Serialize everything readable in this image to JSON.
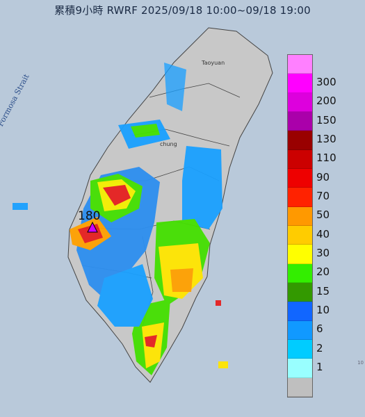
{
  "title": "累積9小時 RWRF 2025/09/18 10:00~09/18 19:00",
  "strait_label": "Formosa Strait",
  "place_labels": {
    "taoyuan": "Taoyuan",
    "taichung": "chung"
  },
  "max_value": "180",
  "max_marker": "purple triangle",
  "corner_label": "10",
  "legend": {
    "colors": [
      "#ff80ff",
      "#ff00ff",
      "#dd00dd",
      "#aa00aa",
      "#990000",
      "#cc0000",
      "#ee0000",
      "#ff2200",
      "#ff9900",
      "#ffcc00",
      "#ffff00",
      "#33ee00",
      "#339900",
      "#1166ff",
      "#1199ff",
      "#00ccff",
      "#99ffff",
      "#bfbfbf"
    ],
    "labels": [
      "300",
      "200",
      "150",
      "130",
      "110",
      "90",
      "70",
      "50",
      "40",
      "30",
      "20",
      "15",
      "10",
      "6",
      "2",
      "1"
    ]
  }
}
